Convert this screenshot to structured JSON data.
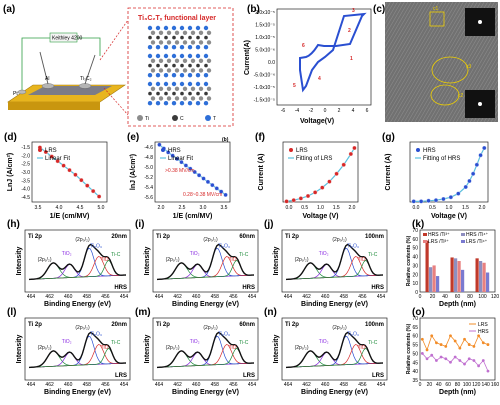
{
  "panels": {
    "a": {
      "label": "(a)",
      "callout": "Ti₃C₂Tₓ functional layer",
      "device_label": "Keithley 4200",
      "electrodes": [
        "Pt",
        "Al",
        "Ti₃C₂"
      ],
      "atoms": [
        {
          "name": "Ti",
          "color": "#8c8c8c"
        },
        {
          "name": "C",
          "color": "#3a3a3a"
        },
        {
          "name": "T",
          "color": "#2e6fd8"
        }
      ]
    },
    "b": {
      "label": "(b)",
      "xlabel": "Voltage(V)",
      "ylabel": "Current(A)",
      "yticks": [
        "2.0x10⁻⁵",
        "1.5x10⁻⁵",
        "1.0x10⁻⁵",
        "5.0x10⁻⁶",
        "0.0",
        "-5.0x10⁻⁶",
        "-1.0x10⁻⁵",
        "-1.5x10⁻⁵"
      ],
      "xticks": [
        "-6",
        "-4",
        "-2",
        "0",
        "2",
        "4",
        "6"
      ],
      "arrows": [
        "1",
        "2",
        "3",
        "4",
        "5",
        "6"
      ]
    },
    "c": {
      "label": "(c)",
      "tags": [
        "c1",
        "c2",
        "c3"
      ]
    },
    "d": {
      "label": "(d)",
      "xlabel": "1/E (cm/MV)",
      "ylabel": "LnJ (A/cm²)",
      "xticks": [
        "3.5",
        "4.0",
        "4.5",
        "5.0"
      ],
      "yticks": [
        "-1.5",
        "-2.0",
        "-2.5",
        "-3.0",
        "-3.5",
        "-4.0",
        "-4.5"
      ],
      "legend": [
        "LRS",
        "Linear Fit"
      ]
    },
    "e": {
      "label": "(e)",
      "xlabel": "1/E (cm/MV)",
      "ylabel": "lnJ (A/cm²)",
      "xticks": [
        "2.0",
        "2.5",
        "3.0",
        "3.5"
      ],
      "yticks": [
        "-4.6",
        "-4.8",
        "-5.0",
        "-5.2",
        "-5.4",
        "-5.6"
      ],
      "legend": [
        "HRS",
        "Linear Fit"
      ],
      "annotations": [
        "0.38 MV/cm",
        "0.28~0.38 MV/cm"
      ],
      "unit_tag": "(b)"
    },
    "f": {
      "label": "(f)",
      "xlabel": "Voltage (V)",
      "ylabel": "Current (A)",
      "xticks": [
        "0.0",
        "0.5",
        "1.0",
        "1.5",
        "2.0"
      ],
      "legend": [
        "LRS",
        "Fitting of LRS"
      ]
    },
    "g": {
      "label": "(g)",
      "xlabel": "Voltage (V)",
      "ylabel": "Current (A)",
      "xticks": [
        "0.0",
        "0.5",
        "1.0",
        "1.5",
        "2.0"
      ],
      "legend": [
        "HRS",
        "Fitting of HRS"
      ]
    },
    "h": {
      "label": "(h)",
      "title": "Ti 2p",
      "depth": "20nm",
      "state": "HRS"
    },
    "i": {
      "label": "(i)",
      "title": "Ti 2p",
      "depth": "60nm",
      "state": "HRS"
    },
    "j": {
      "label": "(j)",
      "title": "Ti 2p",
      "depth": "100nm",
      "state": "HRS"
    },
    "k": {
      "label": "(k)",
      "xlabel": "Depth (nm)",
      "ylabel": "Relative contents (%)",
      "xticks": [
        "0",
        "20",
        "40",
        "60",
        "80",
        "100",
        "120"
      ],
      "yticks": [
        "0",
        "10",
        "20",
        "30",
        "40",
        "50",
        "60",
        "70"
      ],
      "legend": [
        "HRS /Ti³⁺",
        "HRS /Ti⁴⁺",
        "LRS /Ti³⁺",
        "LRS /Ti⁴⁺"
      ]
    },
    "l": {
      "label": "(l)",
      "title": "Ti 2p",
      "depth": "20nm",
      "state": "LRS"
    },
    "m": {
      "label": "(m)",
      "title": "Ti 2p",
      "depth": "60nm",
      "state": "LRS"
    },
    "n": {
      "label": "(n)",
      "title": "Ti 2p",
      "depth": "100nm",
      "state": "LRS"
    },
    "o": {
      "label": "(o)",
      "xlabel": "Depth (nm)",
      "ylabel": "Relative contents (%)",
      "xticks": [
        "0",
        "20",
        "40",
        "60",
        "80",
        "100",
        "120",
        "140",
        "160"
      ],
      "yticks": [
        "35",
        "40",
        "45",
        "50",
        "55",
        "60",
        "65",
        "70"
      ],
      "legend": [
        "LRS",
        "HRS"
      ]
    }
  },
  "xps_common": {
    "xlabel": "Binding Energy (eV)",
    "ylabel": "Intensity",
    "xticks": [
      "464",
      "462",
      "460",
      "458",
      "456",
      "454"
    ],
    "peak_labels": [
      "(2p₁/₂)",
      "(2p₃/₂)",
      "TiO₂",
      "Ti₂O₃",
      "Ti-C",
      "TiO"
    ]
  },
  "chart_data": [
    {
      "panel": "d",
      "type": "scatter",
      "series": [
        {
          "name": "LRS",
          "x": [
            3.5,
            3.65,
            3.8,
            3.95,
            4.1,
            4.25,
            4.4,
            4.55,
            4.7,
            4.85,
            5.0
          ],
          "y": [
            -1.6,
            -1.85,
            -2.1,
            -2.35,
            -2.6,
            -2.85,
            -3.1,
            -3.4,
            -3.7,
            -4.0,
            -4.3
          ]
        }
      ],
      "xlim": [
        3.3,
        5.2
      ],
      "ylim": [
        -4.6,
        -1.3
      ]
    },
    {
      "panel": "e",
      "type": "scatter",
      "series": [
        {
          "name": "HRS",
          "x": [
            2.0,
            2.1,
            2.2,
            2.3,
            2.4,
            2.5,
            2.6,
            2.7,
            2.8,
            2.9,
            3.0,
            3.1,
            3.2,
            3.3,
            3.4,
            3.5
          ],
          "y": [
            -4.6,
            -4.67,
            -4.74,
            -4.8,
            -4.86,
            -4.92,
            -4.98,
            -5.04,
            -5.1,
            -5.16,
            -5.22,
            -5.28,
            -5.34,
            -5.4,
            -5.46,
            -5.52
          ]
        }
      ],
      "xlim": [
        1.9,
        3.6
      ],
      "ylim": [
        -5.65,
        -4.55
      ]
    },
    {
      "panel": "f",
      "type": "scatter",
      "series": [
        {
          "name": "LRS",
          "x": [
            0.1,
            0.3,
            0.5,
            0.7,
            0.9,
            1.1,
            1.3,
            1.5,
            1.7,
            1.9,
            2.0
          ],
          "y": [
            0.01,
            0.03,
            0.06,
            0.1,
            0.16,
            0.24,
            0.34,
            0.47,
            0.62,
            0.8,
            0.9
          ]
        }
      ],
      "xlim": [
        0,
        2.1
      ],
      "ylim": [
        0,
        1
      ]
    },
    {
      "panel": "g",
      "type": "scatter",
      "series": [
        {
          "name": "HRS",
          "x": [
            0.1,
            0.3,
            0.5,
            0.7,
            0.9,
            1.1,
            1.3,
            1.5,
            1.6,
            1.7,
            1.8,
            1.9,
            2.0
          ],
          "y": [
            0.01,
            0.01,
            0.02,
            0.03,
            0.05,
            0.08,
            0.14,
            0.25,
            0.35,
            0.47,
            0.62,
            0.78,
            0.9
          ]
        }
      ],
      "xlim": [
        0,
        2.1
      ],
      "ylim": [
        0,
        1
      ]
    },
    {
      "panel": "k",
      "type": "bar",
      "categories": [
        20,
        60,
        100
      ],
      "series": [
        {
          "name": "HRS /Ti³⁺",
          "values": [
            58,
            39,
            38
          ]
        },
        {
          "name": "HRS /Ti⁴⁺",
          "values": [
            28,
            38,
            35
          ]
        },
        {
          "name": "LRS /Ti³⁺",
          "values": [
            30,
            35,
            33
          ]
        },
        {
          "name": "LRS /Ti⁴⁺",
          "values": [
            18,
            25,
            22
          ]
        }
      ],
      "ylim": [
        0,
        70
      ]
    },
    {
      "panel": "o",
      "type": "line",
      "series": [
        {
          "name": "LRS",
          "x": [
            5,
            15,
            25,
            35,
            45,
            55,
            65,
            75,
            85,
            95,
            105,
            115,
            125,
            135,
            145
          ],
          "y": [
            58,
            52,
            60,
            56,
            55,
            54,
            60,
            57,
            53,
            58,
            55,
            54,
            60,
            56,
            55
          ]
        },
        {
          "name": "HRS",
          "x": [
            5,
            15,
            25,
            35,
            45,
            55,
            65,
            75,
            85,
            95,
            105,
            115,
            125,
            135,
            145
          ],
          "y": [
            50,
            47,
            49,
            46,
            48,
            47,
            45,
            48,
            46,
            44,
            47,
            46,
            43,
            46,
            40
          ]
        }
      ],
      "ylim": [
        35,
        70
      ]
    }
  ]
}
